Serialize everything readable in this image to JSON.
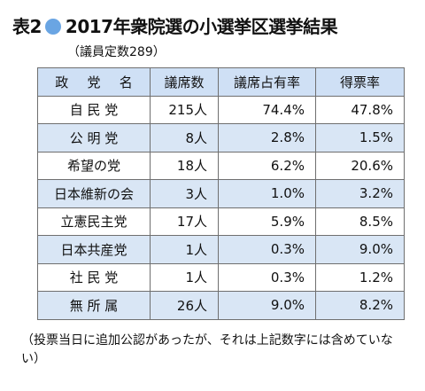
{
  "title": {
    "prefix": "表2",
    "main": "2017年衆院選の小選挙区選挙結果",
    "dot_color": "#6aa5e3"
  },
  "subtitle": "（議員定数289）",
  "table": {
    "headers": [
      "政 党 名",
      "議席数",
      "議席占有率",
      "得票率"
    ],
    "rows": [
      {
        "party": "自 民 党",
        "seats": "215人",
        "seat_share": "74.4%",
        "vote_share": "47.8%"
      },
      {
        "party": "公 明 党",
        "seats": "8人",
        "seat_share": "2.8%",
        "vote_share": "1.5%"
      },
      {
        "party": "希望の党",
        "seats": "18人",
        "seat_share": "6.2%",
        "vote_share": "20.6%"
      },
      {
        "party": "日本維新の会",
        "seats": "3人",
        "seat_share": "1.0%",
        "vote_share": "3.2%"
      },
      {
        "party": "立憲民主党",
        "seats": "17人",
        "seat_share": "5.9%",
        "vote_share": "8.5%"
      },
      {
        "party": "日本共産党",
        "seats": "1人",
        "seat_share": "0.3%",
        "vote_share": "9.0%"
      },
      {
        "party": "社 民 党",
        "seats": "1人",
        "seat_share": "0.3%",
        "vote_share": "1.2%"
      },
      {
        "party": "無 所 属",
        "seats": "26人",
        "seat_share": "9.0%",
        "vote_share": "8.2%"
      }
    ],
    "header_color": "#cfe0f5",
    "stripe_color": "#d9e6f5"
  },
  "note": "（投票当日に追加公認があったが、それは上記数字には含めていない）"
}
